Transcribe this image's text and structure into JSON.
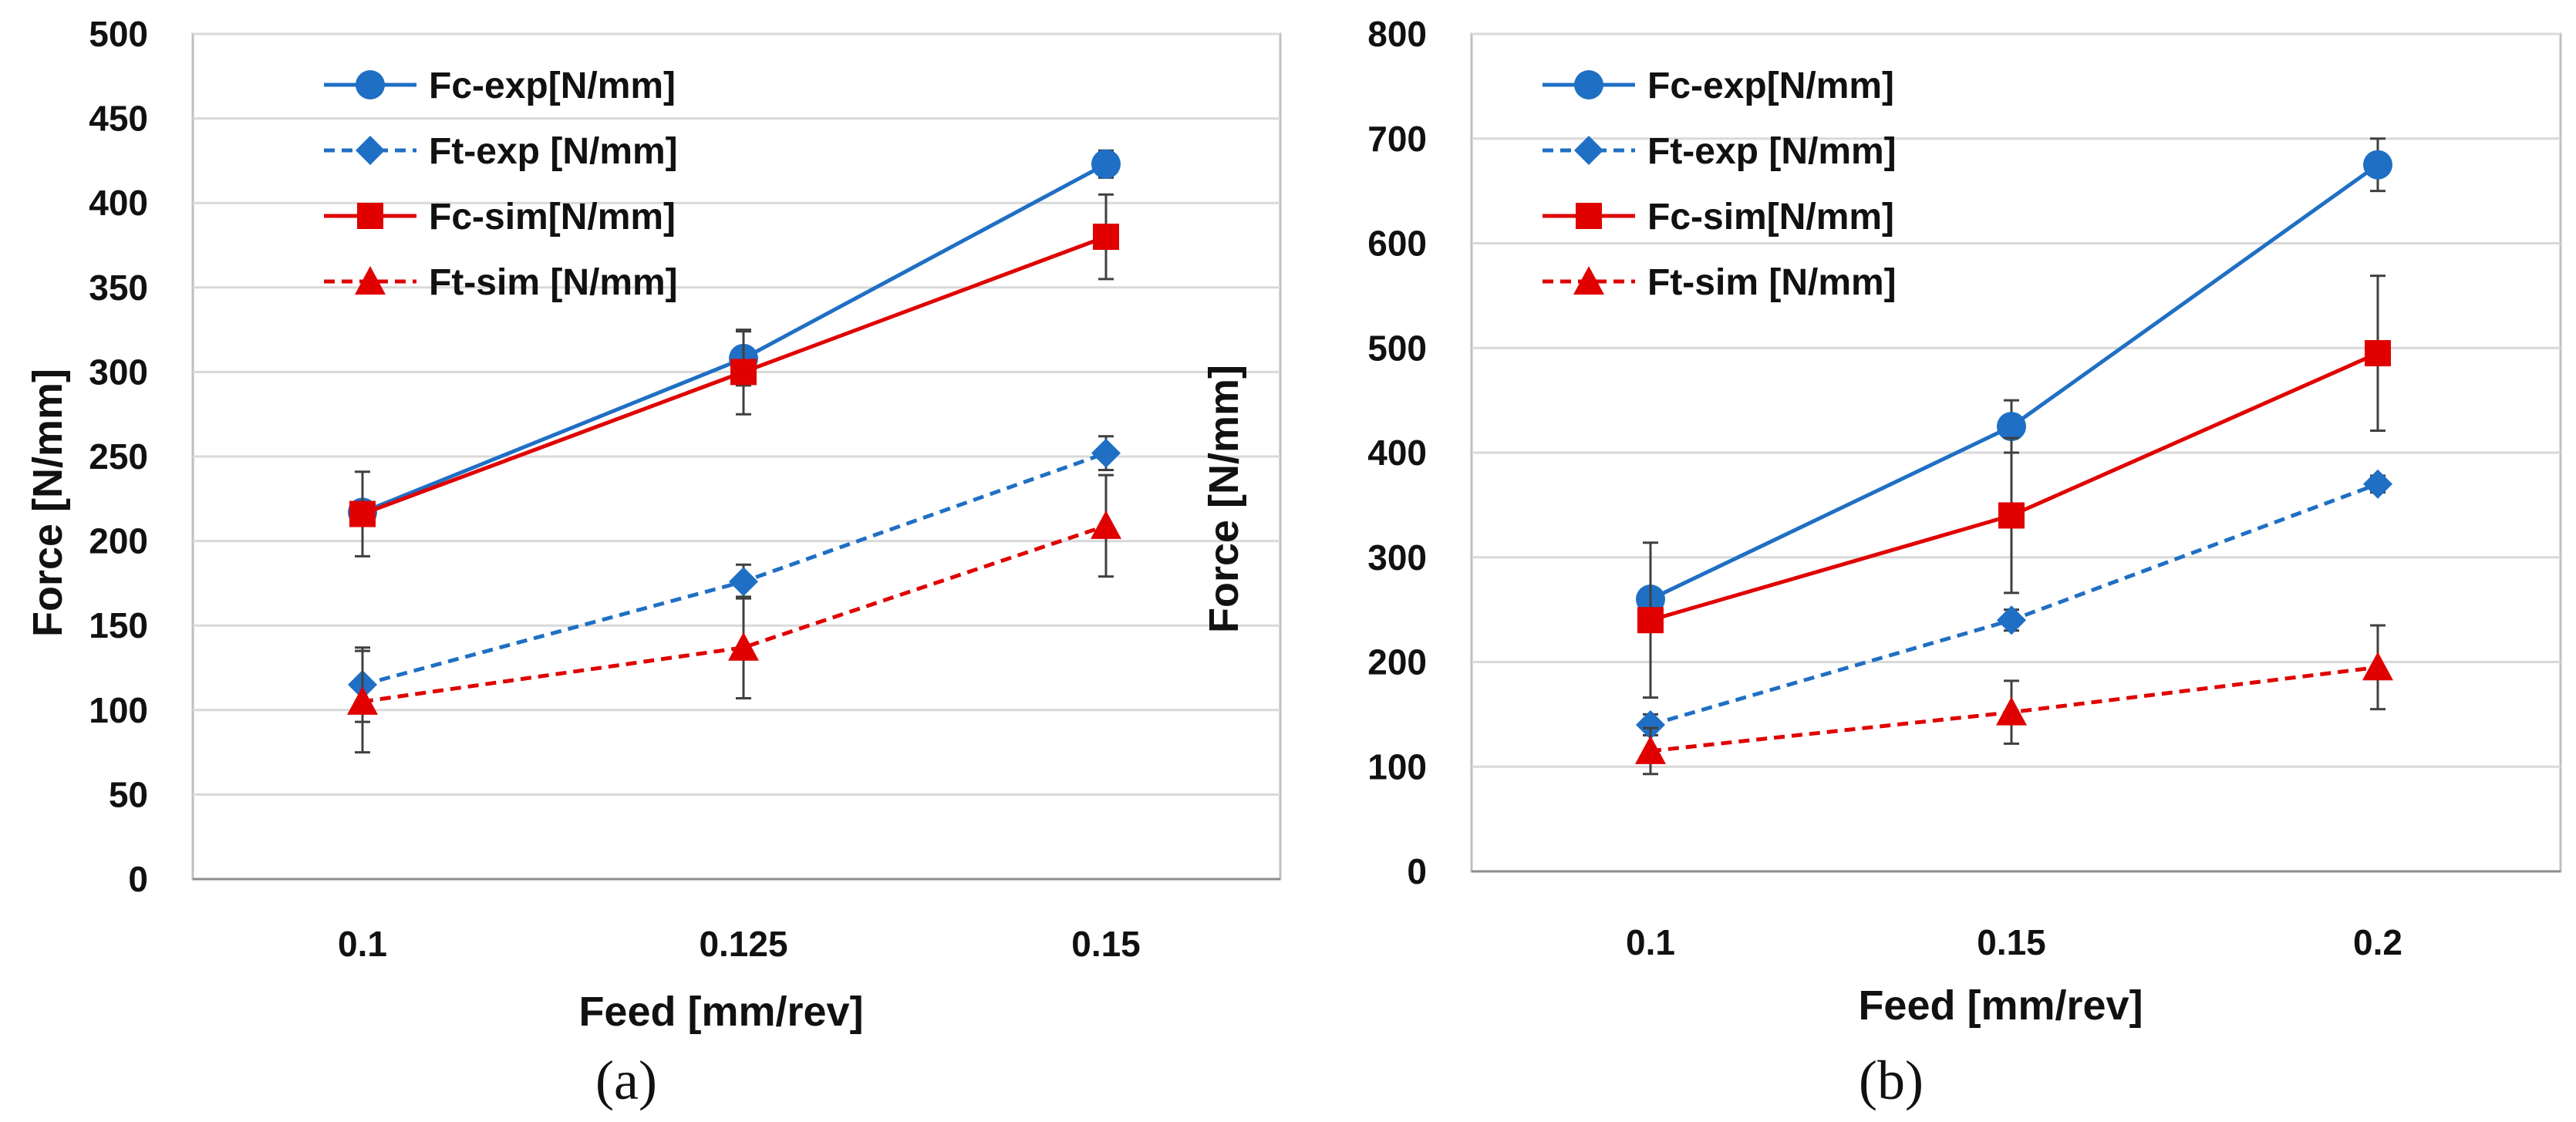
{
  "chart_data": [
    {
      "type": "line",
      "panel_label": "(a)",
      "xlabel": "Feed [mm/rev]",
      "ylabel": "Force [N/mm]",
      "categories": [
        "0.1",
        "0.125",
        "0.15"
      ],
      "ylim": [
        0,
        500
      ],
      "yticks": [
        0,
        50,
        100,
        150,
        200,
        250,
        300,
        350,
        400,
        450,
        500
      ],
      "grid": true,
      "legend_position": "top-left",
      "series": [
        {
          "name": "Fc-exp[N/mm]",
          "values": [
            217,
            308,
            423
          ],
          "errors": [
            0,
            16,
            8
          ],
          "color": "#1f6fc4",
          "dashed": false,
          "marker": "circle"
        },
        {
          "name": "Ft-exp [N/mm]",
          "values": [
            115,
            176,
            252
          ],
          "errors": [
            22,
            10,
            10
          ],
          "color": "#1f6fc4",
          "dashed": true,
          "marker": "diamond"
        },
        {
          "name": "Fc-sim[N/mm]",
          "values": [
            216,
            300,
            380
          ],
          "errors": [
            25,
            25,
            25
          ],
          "color": "#e00000",
          "dashed": false,
          "marker": "square"
        },
        {
          "name": "Ft-sim [N/mm]",
          "values": [
            105,
            137,
            209
          ],
          "errors": [
            30,
            30,
            30
          ],
          "color": "#e00000",
          "dashed": true,
          "marker": "triangle"
        }
      ]
    },
    {
      "type": "line",
      "panel_label": "(b)",
      "xlabel": "Feed [mm/rev]",
      "ylabel": "Force [N/mm]",
      "categories": [
        "0.1",
        "0.15",
        "0.2"
      ],
      "ylim": [
        0,
        800
      ],
      "yticks": [
        0,
        100,
        200,
        300,
        400,
        500,
        600,
        700,
        800
      ],
      "grid": true,
      "legend_position": "top-left",
      "series": [
        {
          "name": "Fc-exp[N/mm]",
          "values": [
            260,
            425,
            675
          ],
          "errors": [
            0,
            25,
            25
          ],
          "color": "#1f6fc4",
          "dashed": false,
          "marker": "circle"
        },
        {
          "name": "Ft-exp [N/mm]",
          "values": [
            140,
            240,
            370
          ],
          "errors": [
            10,
            10,
            8
          ],
          "color": "#1f6fc4",
          "dashed": true,
          "marker": "diamond"
        },
        {
          "name": "Fc-sim[N/mm]",
          "values": [
            240,
            340,
            495
          ],
          "errors": [
            74,
            74,
            74
          ],
          "color": "#e00000",
          "dashed": false,
          "marker": "square"
        },
        {
          "name": "Ft-sim [N/mm]",
          "values": [
            115,
            152,
            195
          ],
          "errors": [
            22,
            30,
            40
          ],
          "color": "#e00000",
          "dashed": true,
          "marker": "triangle"
        }
      ]
    }
  ]
}
